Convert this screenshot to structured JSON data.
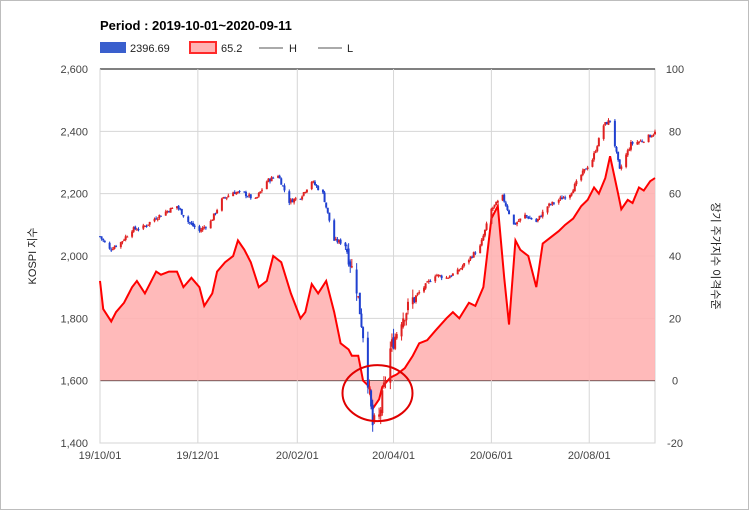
{
  "chart_data": {
    "type": "candlestick+area",
    "title": "Period : 2019-10-01~2020-09-11",
    "legend": {
      "placement": "top-left",
      "items": [
        {
          "label": "2396.69",
          "color": "#3a5fcd",
          "kind": "box"
        },
        {
          "label": "65.2",
          "color": "#ff2a2a",
          "kind": "box-red"
        },
        {
          "label": "H",
          "color": "#555555",
          "kind": "line"
        },
        {
          "label": "L",
          "color": "#555555",
          "kind": "line"
        }
      ]
    },
    "ylabel_left": "KOSPI 지수",
    "ylabel_right": "장기 주가지수 이격수준",
    "yleft_range": [
      1400,
      2600
    ],
    "yright_range": [
      -20,
      100
    ],
    "yleft_ticks": [
      "2,600",
      "2,400",
      "2,200",
      "2,000",
      "1,800",
      "1,600",
      "1,400"
    ],
    "yright_ticks": [
      "100",
      "80",
      "60",
      "40",
      "20",
      "0",
      "-20"
    ],
    "x_range": [
      "2019-10-01",
      "2020-09-11"
    ],
    "x_ticks": [
      {
        "date": "2019-10-01",
        "label": "19/10/01"
      },
      {
        "date": "2019-12-01",
        "label": "19/12/01"
      },
      {
        "date": "2020-02-01",
        "label": "20/02/01"
      },
      {
        "date": "2020-04-01",
        "label": "20/04/01"
      },
      {
        "date": "2020-06-01",
        "label": "20/06/01"
      },
      {
        "date": "2020-08-01",
        "label": "20/08/01"
      }
    ],
    "grid": true,
    "colors": {
      "up": "#e02020",
      "down": "#2040d0",
      "area_fill": "#ffb3b3",
      "area_line": "#ff0000",
      "circle": "#e00000"
    },
    "kospi_series": [
      {
        "x": "2019-10-01",
        "y": 2063
      },
      {
        "x": "2019-10-07",
        "y": 2021
      },
      {
        "x": "2019-10-14",
        "y": 2044
      },
      {
        "x": "2019-10-21",
        "y": 2085
      },
      {
        "x": "2019-10-28",
        "y": 2092
      },
      {
        "x": "2019-11-04",
        "y": 2120
      },
      {
        "x": "2019-11-11",
        "y": 2142
      },
      {
        "x": "2019-11-18",
        "y": 2160
      },
      {
        "x": "2019-11-25",
        "y": 2110
      },
      {
        "x": "2019-12-02",
        "y": 2080
      },
      {
        "x": "2019-12-09",
        "y": 2110
      },
      {
        "x": "2019-12-16",
        "y": 2180
      },
      {
        "x": "2019-12-23",
        "y": 2205
      },
      {
        "x": "2019-12-30",
        "y": 2200
      },
      {
        "x": "2020-01-06",
        "y": 2180
      },
      {
        "x": "2020-01-13",
        "y": 2240
      },
      {
        "x": "2020-01-20",
        "y": 2260
      },
      {
        "x": "2020-01-27",
        "y": 2175
      },
      {
        "x": "2020-02-03",
        "y": 2190
      },
      {
        "x": "2020-02-10",
        "y": 2240
      },
      {
        "x": "2020-02-17",
        "y": 2200
      },
      {
        "x": "2020-02-24",
        "y": 2050
      },
      {
        "x": "2020-03-02",
        "y": 2040
      },
      {
        "x": "2020-03-09",
        "y": 1900
      },
      {
        "x": "2020-03-13",
        "y": 1750
      },
      {
        "x": "2020-03-19",
        "y": 1457
      },
      {
        "x": "2020-03-23",
        "y": 1482
      },
      {
        "x": "2020-03-30",
        "y": 1700
      },
      {
        "x": "2020-04-06",
        "y": 1800
      },
      {
        "x": "2020-04-13",
        "y": 1860
      },
      {
        "x": "2020-04-20",
        "y": 1900
      },
      {
        "x": "2020-04-27",
        "y": 1940
      },
      {
        "x": "2020-05-04",
        "y": 1930
      },
      {
        "x": "2020-05-11",
        "y": 1950
      },
      {
        "x": "2020-05-18",
        "y": 1990
      },
      {
        "x": "2020-05-25",
        "y": 2030
      },
      {
        "x": "2020-06-01",
        "y": 2150
      },
      {
        "x": "2020-06-08",
        "y": 2190
      },
      {
        "x": "2020-06-15",
        "y": 2100
      },
      {
        "x": "2020-06-22",
        "y": 2130
      },
      {
        "x": "2020-06-29",
        "y": 2110
      },
      {
        "x": "2020-07-06",
        "y": 2160
      },
      {
        "x": "2020-07-13",
        "y": 2180
      },
      {
        "x": "2020-07-20",
        "y": 2200
      },
      {
        "x": "2020-07-27",
        "y": 2260
      },
      {
        "x": "2020-08-03",
        "y": 2310
      },
      {
        "x": "2020-08-10",
        "y": 2420
      },
      {
        "x": "2020-08-14",
        "y": 2435
      },
      {
        "x": "2020-08-20",
        "y": 2275
      },
      {
        "x": "2020-08-27",
        "y": 2360
      },
      {
        "x": "2020-09-03",
        "y": 2370
      },
      {
        "x": "2020-09-11",
        "y": 2396
      }
    ],
    "disparity_series": [
      {
        "x": "2019-10-01",
        "y": 32
      },
      {
        "x": "2019-10-03",
        "y": 23
      },
      {
        "x": "2019-10-08",
        "y": 19
      },
      {
        "x": "2019-10-11",
        "y": 22
      },
      {
        "x": "2019-10-16",
        "y": 25
      },
      {
        "x": "2019-10-21",
        "y": 30
      },
      {
        "x": "2019-10-24",
        "y": 32
      },
      {
        "x": "2019-10-29",
        "y": 28
      },
      {
        "x": "2019-11-01",
        "y": 31
      },
      {
        "x": "2019-11-05",
        "y": 35
      },
      {
        "x": "2019-11-08",
        "y": 34
      },
      {
        "x": "2019-11-13",
        "y": 35
      },
      {
        "x": "2019-11-18",
        "y": 35
      },
      {
        "x": "2019-11-22",
        "y": 30
      },
      {
        "x": "2019-11-27",
        "y": 33
      },
      {
        "x": "2019-12-02",
        "y": 30
      },
      {
        "x": "2019-12-05",
        "y": 24
      },
      {
        "x": "2019-12-10",
        "y": 28
      },
      {
        "x": "2019-12-13",
        "y": 35
      },
      {
        "x": "2019-12-18",
        "y": 38
      },
      {
        "x": "2019-12-23",
        "y": 40
      },
      {
        "x": "2019-12-26",
        "y": 45
      },
      {
        "x": "2019-12-30",
        "y": 42
      },
      {
        "x": "2020-01-03",
        "y": 38
      },
      {
        "x": "2020-01-08",
        "y": 30
      },
      {
        "x": "2020-01-13",
        "y": 32
      },
      {
        "x": "2020-01-17",
        "y": 40
      },
      {
        "x": "2020-01-22",
        "y": 38
      },
      {
        "x": "2020-01-28",
        "y": 28
      },
      {
        "x": "2020-02-03",
        "y": 20
      },
      {
        "x": "2020-02-06",
        "y": 22
      },
      {
        "x": "2020-02-10",
        "y": 31
      },
      {
        "x": "2020-02-14",
        "y": 28
      },
      {
        "x": "2020-02-19",
        "y": 32
      },
      {
        "x": "2020-02-24",
        "y": 22
      },
      {
        "x": "2020-02-28",
        "y": 12
      },
      {
        "x": "2020-03-04",
        "y": 10
      },
      {
        "x": "2020-03-06",
        "y": 8
      },
      {
        "x": "2020-03-10",
        "y": 8
      },
      {
        "x": "2020-03-13",
        "y": 0
      },
      {
        "x": "2020-03-17",
        "y": -2
      },
      {
        "x": "2020-03-19",
        "y": -9
      },
      {
        "x": "2020-03-23",
        "y": -6
      },
      {
        "x": "2020-03-25",
        "y": -2
      },
      {
        "x": "2020-03-30",
        "y": 1
      },
      {
        "x": "2020-04-03",
        "y": 2
      },
      {
        "x": "2020-04-08",
        "y": 4
      },
      {
        "x": "2020-04-13",
        "y": 8
      },
      {
        "x": "2020-04-17",
        "y": 12
      },
      {
        "x": "2020-04-22",
        "y": 13
      },
      {
        "x": "2020-04-27",
        "y": 16
      },
      {
        "x": "2020-05-04",
        "y": 20
      },
      {
        "x": "2020-05-08",
        "y": 22
      },
      {
        "x": "2020-05-12",
        "y": 20
      },
      {
        "x": "2020-05-18",
        "y": 25
      },
      {
        "x": "2020-05-22",
        "y": 24
      },
      {
        "x": "2020-05-27",
        "y": 30
      },
      {
        "x": "2020-06-01",
        "y": 52
      },
      {
        "x": "2020-06-05",
        "y": 56
      },
      {
        "x": "2020-06-09",
        "y": 33
      },
      {
        "x": "2020-06-12",
        "y": 18
      },
      {
        "x": "2020-06-16",
        "y": 45
      },
      {
        "x": "2020-06-19",
        "y": 42
      },
      {
        "x": "2020-06-24",
        "y": 40
      },
      {
        "x": "2020-06-29",
        "y": 30
      },
      {
        "x": "2020-07-03",
        "y": 44
      },
      {
        "x": "2020-07-08",
        "y": 46
      },
      {
        "x": "2020-07-13",
        "y": 48
      },
      {
        "x": "2020-07-17",
        "y": 50
      },
      {
        "x": "2020-07-22",
        "y": 52
      },
      {
        "x": "2020-07-27",
        "y": 56
      },
      {
        "x": "2020-07-31",
        "y": 58
      },
      {
        "x": "2020-08-04",
        "y": 62
      },
      {
        "x": "2020-08-07",
        "y": 60
      },
      {
        "x": "2020-08-11",
        "y": 65
      },
      {
        "x": "2020-08-14",
        "y": 72
      },
      {
        "x": "2020-08-19",
        "y": 60
      },
      {
        "x": "2020-08-21",
        "y": 55
      },
      {
        "x": "2020-08-25",
        "y": 58
      },
      {
        "x": "2020-08-28",
        "y": 57
      },
      {
        "x": "2020-09-01",
        "y": 62
      },
      {
        "x": "2020-09-04",
        "y": 61
      },
      {
        "x": "2020-09-08",
        "y": 64
      },
      {
        "x": "2020-09-11",
        "y": 65
      }
    ]
  }
}
